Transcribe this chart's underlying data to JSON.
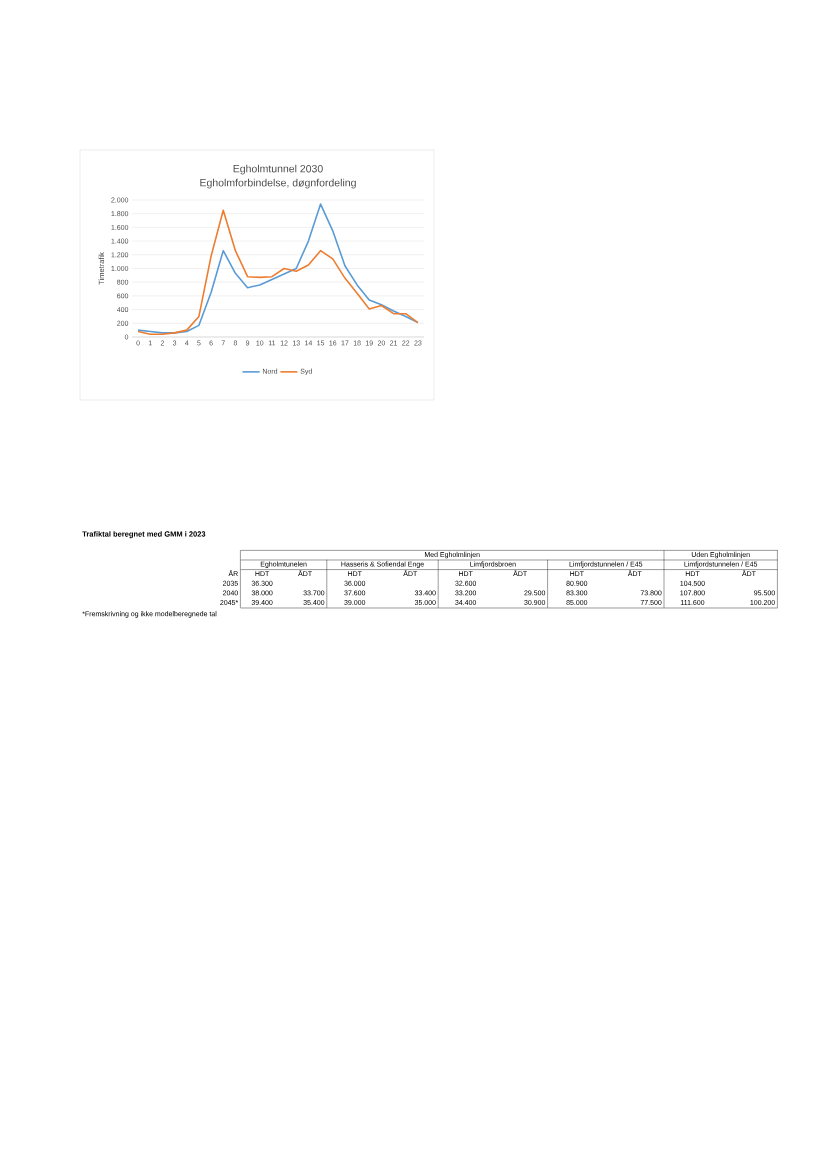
{
  "chart_data": [
    {
      "type": "line",
      "title": "Egholmtunnel 2030",
      "subtitle": "Egholmforbindelse, døgnfordeling",
      "ylabel": "Timetrafik",
      "categories": [
        "0",
        "1",
        "2",
        "3",
        "4",
        "5",
        "6",
        "7",
        "8",
        "9",
        "10",
        "11",
        "12",
        "13",
        "14",
        "15",
        "16",
        "17",
        "18",
        "19",
        "20",
        "21",
        "22",
        "23"
      ],
      "series": [
        {
          "name": "Nord",
          "color": "#5b9bd5",
          "values": [
            100,
            80,
            60,
            60,
            80,
            170,
            650,
            1260,
            930,
            720,
            760,
            840,
            920,
            1000,
            1400,
            1940,
            1550,
            1040,
            760,
            540,
            470,
            380,
            300,
            210
          ]
        },
        {
          "name": "Syd",
          "color": "#ed7d31",
          "values": [
            80,
            40,
            40,
            60,
            100,
            300,
            1180,
            1850,
            1260,
            880,
            870,
            880,
            1000,
            960,
            1050,
            1260,
            1140,
            860,
            640,
            410,
            460,
            340,
            340,
            210
          ]
        }
      ],
      "ylim": [
        0,
        2000
      ],
      "yticks": [
        0,
        200,
        400,
        600,
        800,
        {
          "value": 1000,
          "label": "1.000"
        },
        {
          "value": 1200,
          "label": "1.200"
        },
        {
          "value": 1400,
          "label": "1.400"
        },
        {
          "value": 1600,
          "label": "1.600"
        },
        {
          "value": 1800,
          "label": "1.800"
        },
        {
          "value": 2000,
          "label": "2.000"
        }
      ],
      "grid": "y",
      "legend": "bottom",
      "marker": "none",
      "line_style": "solid"
    },
    {
      "type": "other",
      "title": "Trafiktal beregnet med GMM i 2023",
      "ylabel": "ÅR",
      "categories": [
        "HDT",
        "ÅDT",
        "HDT",
        "ÅDT",
        "HDT",
        "ÅDT",
        "HDT",
        "ÅDT",
        "HDT",
        "ÅDT"
      ],
      "y_categories": [
        "2035",
        "2040",
        "2045*"
      ],
      "cell_labels": [
        [
          "36.300",
          null,
          "36.000",
          null,
          "32.600",
          null,
          "80.900",
          null,
          "104.500",
          null
        ],
        [
          "38.000",
          "33.700",
          "37.600",
          "33.400",
          "33.200",
          "29.500",
          "83.300",
          "73.800",
          "107.800",
          "95.500"
        ],
        [
          "39.400",
          "35.400",
          "39.000",
          "35.000",
          "34.400",
          "30.900",
          "85.000",
          "77.500",
          "111.600",
          "100.200"
        ]
      ],
      "annotations": [
        "Med Egholmlinjen",
        "Uden Egholmlinjen",
        "Egholmtunelen",
        "Hasseris & Sofiendal Enge",
        "Limfjordsbroen",
        "Limfjordstunnelen / E45",
        "Limfjordstunnelen / E45",
        "*Fremskrivning og ikke modelberegnede tal"
      ]
    }
  ]
}
